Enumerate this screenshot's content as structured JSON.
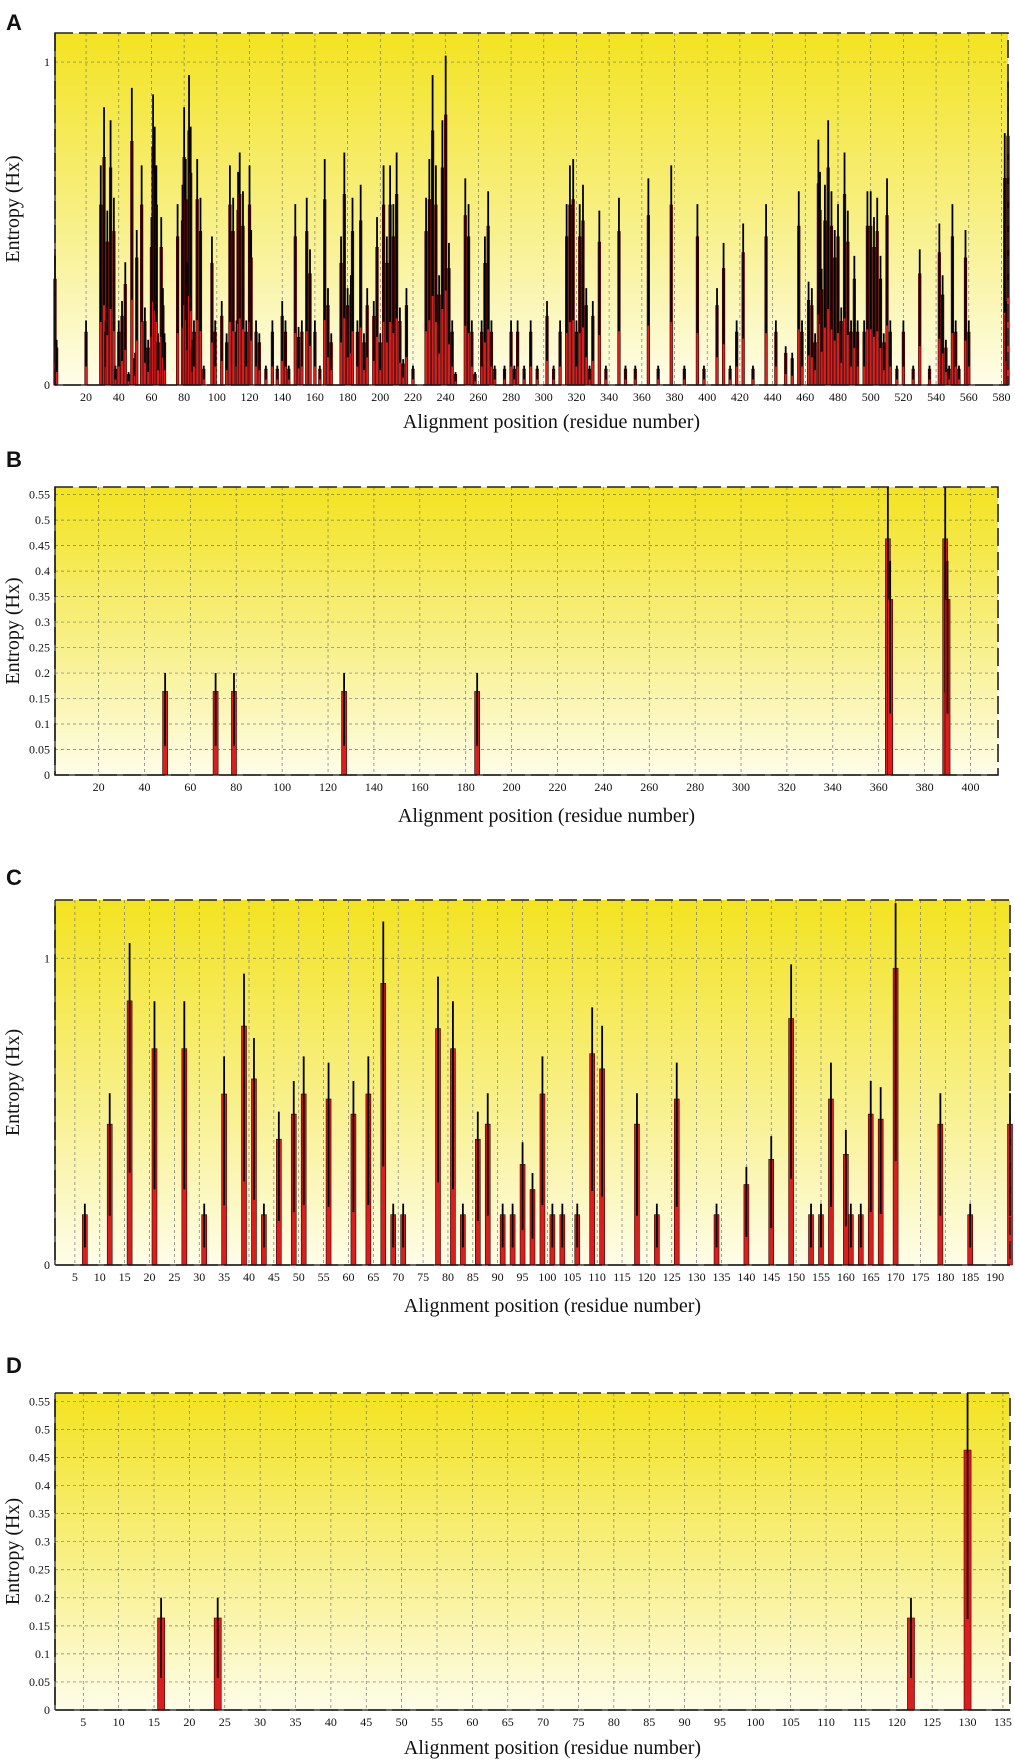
{
  "chart_data": [
    {
      "panel": "A",
      "type": "bar",
      "xlabel": "Alignment position (residue number)",
      "ylabel": "Entropy (Hx)",
      "xlim": [
        1,
        584
      ],
      "ylim": [
        0,
        1.09
      ],
      "xticks": [
        20,
        40,
        60,
        80,
        100,
        120,
        140,
        160,
        180,
        200,
        220,
        240,
        260,
        280,
        300,
        320,
        340,
        360,
        380,
        400,
        420,
        440,
        460,
        480,
        500,
        520,
        540,
        560,
        580
      ],
      "yticks": [
        0,
        1
      ],
      "grid": true,
      "bar_width": 1.6,
      "values": [
        [
          1,
          0.4
        ],
        [
          2,
          0.14
        ],
        [
          20,
          0.2
        ],
        [
          29,
          0.68
        ],
        [
          31,
          0.86
        ],
        [
          32,
          0.2
        ],
        [
          33,
          0.54
        ],
        [
          35,
          0.82
        ],
        [
          37,
          0.58
        ],
        [
          38,
          0.06
        ],
        [
          40,
          0.2
        ],
        [
          42,
          0.26
        ],
        [
          44,
          0.38
        ],
        [
          46,
          0.04
        ],
        [
          48,
          0.92
        ],
        [
          50,
          0.1
        ],
        [
          51,
          0.48
        ],
        [
          54,
          0.68
        ],
        [
          56,
          0.24
        ],
        [
          58,
          0.14
        ],
        [
          60,
          0.52
        ],
        [
          61,
          0.9
        ],
        [
          62,
          0.8
        ],
        [
          63,
          0.68
        ],
        [
          64,
          0.16
        ],
        [
          66,
          0.52
        ],
        [
          67,
          0.3
        ],
        [
          68,
          0.16
        ],
        [
          76,
          0.56
        ],
        [
          79,
          0.62
        ],
        [
          80,
          0.86
        ],
        [
          81,
          0.7
        ],
        [
          82,
          0.38
        ],
        [
          83,
          0.96
        ],
        [
          84,
          0.8
        ],
        [
          85,
          0.14
        ],
        [
          86,
          0.2
        ],
        [
          88,
          0.7
        ],
        [
          90,
          0.58
        ],
        [
          92,
          0.06
        ],
        [
          97,
          0.46
        ],
        [
          99,
          0.2
        ],
        [
          103,
          0.26
        ],
        [
          106,
          0.16
        ],
        [
          108,
          0.68
        ],
        [
          110,
          0.58
        ],
        [
          112,
          0.2
        ],
        [
          113,
          0.66
        ],
        [
          114,
          0.72
        ],
        [
          116,
          0.6
        ],
        [
          118,
          0.2
        ],
        [
          120,
          0.68
        ],
        [
          121,
          0.48
        ],
        [
          124,
          0.2
        ],
        [
          126,
          0.16
        ],
        [
          130,
          0.06
        ],
        [
          134,
          0.2
        ],
        [
          137,
          0.06
        ],
        [
          140,
          0.26
        ],
        [
          142,
          0.2
        ],
        [
          144,
          0.06
        ],
        [
          148,
          0.56
        ],
        [
          150,
          0.18
        ],
        [
          152,
          0.2
        ],
        [
          155,
          0.58
        ],
        [
          157,
          0.42
        ],
        [
          160,
          0.2
        ],
        [
          163,
          0.06
        ],
        [
          166,
          0.7
        ],
        [
          168,
          0.3
        ],
        [
          170,
          0.16
        ],
        [
          176,
          0.46
        ],
        [
          178,
          0.72
        ],
        [
          180,
          0.3
        ],
        [
          182,
          0.34
        ],
        [
          183,
          0.58
        ],
        [
          186,
          0.2
        ],
        [
          188,
          0.62
        ],
        [
          190,
          0.16
        ],
        [
          192,
          0.3
        ],
        [
          196,
          0.26
        ],
        [
          198,
          0.52
        ],
        [
          200,
          0.16
        ],
        [
          202,
          0.68
        ],
        [
          204,
          0.46
        ],
        [
          206,
          0.68
        ],
        [
          208,
          0.56
        ],
        [
          210,
          0.72
        ],
        [
          212,
          0.24
        ],
        [
          214,
          0.08
        ],
        [
          216,
          0.3
        ],
        [
          220,
          0.06
        ],
        [
          228,
          0.58
        ],
        [
          230,
          0.7
        ],
        [
          232,
          0.96
        ],
        [
          234,
          0.68
        ],
        [
          236,
          0.34
        ],
        [
          238,
          0.82
        ],
        [
          240,
          1.02
        ],
        [
          242,
          0.44
        ],
        [
          244,
          0.2
        ],
        [
          246,
          0.04
        ],
        [
          252,
          0.64
        ],
        [
          254,
          0.56
        ],
        [
          256,
          0.2
        ],
        [
          258,
          0.04
        ],
        [
          262,
          0.2
        ],
        [
          264,
          0.46
        ],
        [
          266,
          0.6
        ],
        [
          268,
          0.2
        ],
        [
          270,
          0.06
        ],
        [
          276,
          0.06
        ],
        [
          280,
          0.2
        ],
        [
          282,
          0.06
        ],
        [
          284,
          0.2
        ],
        [
          288,
          0.06
        ],
        [
          292,
          0.2
        ],
        [
          296,
          0.06
        ],
        [
          302,
          0.26
        ],
        [
          306,
          0.06
        ],
        [
          310,
          0.2
        ],
        [
          314,
          0.56
        ],
        [
          316,
          0.68
        ],
        [
          318,
          0.7
        ],
        [
          320,
          0.2
        ],
        [
          322,
          0.56
        ],
        [
          324,
          0.62
        ],
        [
          326,
          0.3
        ],
        [
          328,
          0.06
        ],
        [
          330,
          0.26
        ],
        [
          334,
          0.54
        ],
        [
          338,
          0.06
        ],
        [
          346,
          0.58
        ],
        [
          350,
          0.06
        ],
        [
          356,
          0.06
        ],
        [
          364,
          0.64
        ],
        [
          370,
          0.06
        ],
        [
          378,
          0.68
        ],
        [
          386,
          0.06
        ],
        [
          394,
          0.56
        ],
        [
          398,
          0.06
        ],
        [
          406,
          0.3
        ],
        [
          410,
          0.44
        ],
        [
          414,
          0.06
        ],
        [
          418,
          0.2
        ],
        [
          422,
          0.5
        ],
        [
          428,
          0.06
        ],
        [
          436,
          0.56
        ],
        [
          442,
          0.2
        ],
        [
          448,
          0.12
        ],
        [
          452,
          0.1
        ],
        [
          456,
          0.6
        ],
        [
          458,
          0.2
        ],
        [
          462,
          0.32
        ],
        [
          464,
          0.3
        ],
        [
          466,
          0.16
        ],
        [
          468,
          0.76
        ],
        [
          469,
          0.66
        ],
        [
          470,
          0.36
        ],
        [
          472,
          0.62
        ],
        [
          474,
          0.82
        ],
        [
          476,
          0.6
        ],
        [
          478,
          0.48
        ],
        [
          480,
          0.56
        ],
        [
          482,
          0.24
        ],
        [
          484,
          0.72
        ],
        [
          486,
          0.54
        ],
        [
          488,
          0.2
        ],
        [
          490,
          0.4
        ],
        [
          492,
          0.2
        ],
        [
          496,
          0.2
        ],
        [
          498,
          0.6
        ],
        [
          500,
          0.6
        ],
        [
          502,
          0.52
        ],
        [
          504,
          0.58
        ],
        [
          506,
          0.4
        ],
        [
          508,
          0.16
        ],
        [
          510,
          0.64
        ],
        [
          512,
          0.2
        ],
        [
          516,
          0.06
        ],
        [
          520,
          0.2
        ],
        [
          526,
          0.06
        ],
        [
          530,
          0.42
        ],
        [
          536,
          0.06
        ],
        [
          542,
          0.5
        ],
        [
          544,
          0.34
        ],
        [
          546,
          0.14
        ],
        [
          548,
          0.06
        ],
        [
          550,
          0.56
        ],
        [
          552,
          0.2
        ],
        [
          554,
          0.06
        ],
        [
          558,
          0.48
        ],
        [
          560,
          0.2
        ],
        [
          582,
          0.78
        ],
        [
          583,
          0.26
        ],
        [
          584,
          0.94
        ]
      ]
    },
    {
      "panel": "B",
      "type": "bar",
      "xlabel": "Alignment position (residue number)",
      "ylabel": "Entropy (Hx)",
      "xlim": [
        1,
        412
      ],
      "ylim": [
        0,
        0.565
      ],
      "xticks": [
        20,
        40,
        60,
        80,
        100,
        120,
        140,
        160,
        180,
        200,
        220,
        240,
        260,
        280,
        300,
        320,
        340,
        360,
        380,
        400
      ],
      "yticks": [
        0,
        0.05,
        0.1,
        0.15,
        0.2,
        0.25,
        0.3,
        0.35,
        0.4,
        0.45,
        0.5,
        0.55
      ],
      "grid": true,
      "bar_width": 2.2,
      "values": [
        [
          49,
          0.2
        ],
        [
          71,
          0.2
        ],
        [
          79,
          0.2
        ],
        [
          127,
          0.2
        ],
        [
          185,
          0.2
        ],
        [
          364,
          0.565
        ],
        [
          365,
          0.42
        ],
        [
          389,
          0.565
        ],
        [
          390,
          0.42
        ]
      ]
    },
    {
      "panel": "C",
      "type": "bar",
      "xlabel": "Alignment position (residue number)",
      "ylabel": "Entropy (Hx)",
      "xlim": [
        1,
        193
      ],
      "ylim": [
        0,
        1.19
      ],
      "xticks": [
        5,
        10,
        15,
        20,
        25,
        30,
        35,
        40,
        45,
        50,
        55,
        60,
        65,
        70,
        75,
        80,
        85,
        90,
        95,
        100,
        105,
        110,
        115,
        120,
        125,
        130,
        135,
        140,
        145,
        150,
        155,
        160,
        165,
        170,
        175,
        180,
        185,
        190
      ],
      "yticks": [
        0,
        1
      ],
      "grid": true,
      "bar_width": 1,
      "values": [
        [
          7,
          0.2
        ],
        [
          12,
          0.56
        ],
        [
          16,
          1.05
        ],
        [
          21,
          0.86
        ],
        [
          27,
          0.86
        ],
        [
          31,
          0.2
        ],
        [
          35,
          0.68
        ],
        [
          39,
          0.95
        ],
        [
          41,
          0.74
        ],
        [
          43,
          0.2
        ],
        [
          46,
          0.5
        ],
        [
          49,
          0.6
        ],
        [
          51,
          0.68
        ],
        [
          56,
          0.66
        ],
        [
          61,
          0.6
        ],
        [
          64,
          0.68
        ],
        [
          67,
          1.12
        ],
        [
          69,
          0.2
        ],
        [
          71,
          0.2
        ],
        [
          78,
          0.94
        ],
        [
          81,
          0.86
        ],
        [
          83,
          0.2
        ],
        [
          86,
          0.5
        ],
        [
          88,
          0.56
        ],
        [
          91,
          0.2
        ],
        [
          93,
          0.2
        ],
        [
          95,
          0.4
        ],
        [
          97,
          0.3
        ],
        [
          99,
          0.68
        ],
        [
          101,
          0.2
        ],
        [
          103,
          0.2
        ],
        [
          106,
          0.2
        ],
        [
          109,
          0.84
        ],
        [
          111,
          0.78
        ],
        [
          118,
          0.56
        ],
        [
          122,
          0.2
        ],
        [
          126,
          0.66
        ],
        [
          134,
          0.2
        ],
        [
          140,
          0.32
        ],
        [
          145,
          0.42
        ],
        [
          149,
          0.98
        ],
        [
          153,
          0.2
        ],
        [
          155,
          0.2
        ],
        [
          157,
          0.66
        ],
        [
          160,
          0.44
        ],
        [
          161,
          0.2
        ],
        [
          163,
          0.2
        ],
        [
          165,
          0.6
        ],
        [
          167,
          0.58
        ],
        [
          170,
          1.18
        ],
        [
          179,
          0.56
        ],
        [
          185,
          0.2
        ],
        [
          193,
          0.56
        ]
      ]
    },
    {
      "panel": "D",
      "type": "bar",
      "xlabel": "Alignment position (residue number)",
      "ylabel": "Entropy (Hx)",
      "xlim": [
        1,
        136
      ],
      "ylim": [
        0,
        0.565
      ],
      "xticks": [
        5,
        10,
        15,
        20,
        25,
        30,
        35,
        40,
        45,
        50,
        55,
        60,
        65,
        70,
        75,
        80,
        85,
        90,
        95,
        100,
        105,
        110,
        115,
        120,
        125,
        130,
        135
      ],
      "yticks": [
        0,
        0.05,
        0.1,
        0.15,
        0.2,
        0.25,
        0.3,
        0.35,
        0.4,
        0.45,
        0.5,
        0.55
      ],
      "grid": true,
      "bar_width": 1,
      "values": [
        [
          16,
          0.2
        ],
        [
          24,
          0.2
        ],
        [
          122,
          0.2
        ],
        [
          130,
          0.565
        ]
      ]
    }
  ]
}
